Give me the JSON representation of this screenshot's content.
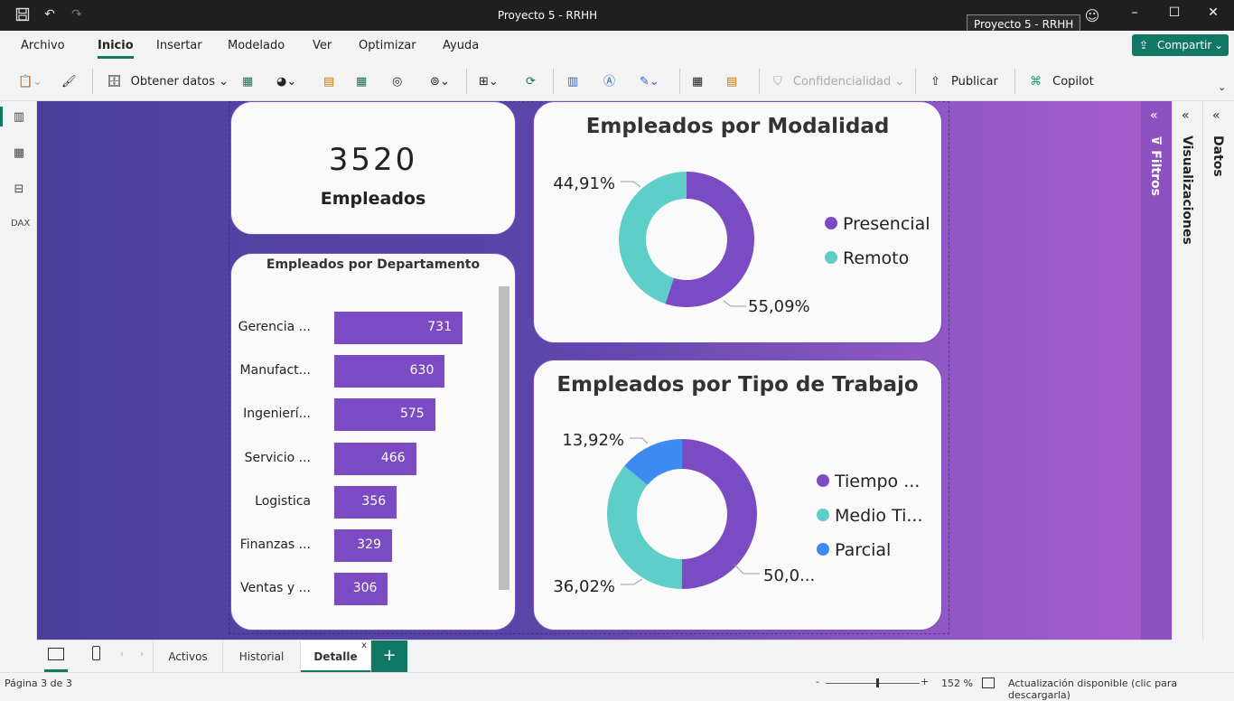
{
  "window": {
    "title": "Proyecto 5 - RRHH",
    "tooltip": "Proyecto 5 - RRHH"
  },
  "menu": {
    "items": [
      "Archivo",
      "Inicio",
      "Insertar",
      "Modelado",
      "Ver",
      "Optimizar",
      "Ayuda"
    ],
    "active": "Inicio",
    "share_label": "Compartir"
  },
  "ribbon": {
    "get_data": "Obtener datos",
    "confidentiality": "Confidencialidad",
    "publish": "Publicar",
    "copilot": "Copilot"
  },
  "right_panes": {
    "filters": "Filtros",
    "visualizations": "Visualizaciones",
    "data": "Datos"
  },
  "kpi": {
    "value": "3520",
    "label": "Empleados"
  },
  "dept_chart": {
    "title": "Empleados por Departamento",
    "chart_data": {
      "type": "bar",
      "orientation": "horizontal",
      "categories": [
        "Gerencia ...",
        "Manufact...",
        "Ingenierí...",
        "Servicio ...",
        "Logistica",
        "Finanzas ...",
        "Ventas y ..."
      ],
      "values": [
        731,
        630,
        575,
        466,
        356,
        329,
        306
      ],
      "value_labels": [
        "731",
        "630",
        "575",
        "466",
        "356",
        "329",
        "306"
      ],
      "color": "#7b4bc4"
    }
  },
  "modalidad_chart": {
    "title": "Empleados por Modalidad",
    "chart_data": {
      "type": "pie",
      "donut": true,
      "categories": [
        "Presencial",
        "Remoto"
      ],
      "values": [
        55.09,
        44.91
      ],
      "labels": [
        "55,09%",
        "44,91%"
      ],
      "colors": [
        "#7b4bc4",
        "#5ecfc8"
      ],
      "legend": "right"
    }
  },
  "tipo_chart": {
    "title": "Empleados por Tipo de Trabajo",
    "chart_data": {
      "type": "pie",
      "donut": true,
      "categories": [
        "Tiempo ...",
        "Medio Ti...",
        "Parcial"
      ],
      "values": [
        50.06,
        36.02,
        13.92
      ],
      "labels": [
        "50,0...",
        "36,02%",
        "13,92%"
      ],
      "colors": [
        "#7b4bc4",
        "#5ecfc8",
        "#3d8bf0"
      ],
      "legend": "right"
    }
  },
  "tabs": {
    "items": [
      "Activos",
      "Historial",
      "Detalle"
    ],
    "active": "Detalle",
    "add": "+"
  },
  "status": {
    "page": "Página 3 de 3",
    "zoom": "152 %",
    "update": "Actualización disponible (clic para descargarla)"
  }
}
